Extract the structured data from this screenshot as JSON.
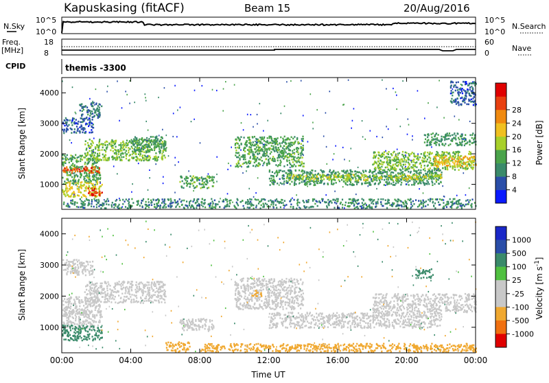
{
  "header": {
    "station": "Kapuskasing (fitACF)",
    "beam": "Beam 15",
    "date": "20/Aug/2016"
  },
  "top_panels": {
    "nsky_label": "N.Sky",
    "nsky_top_tick": "10^5",
    "nsky_bottom_tick": "10^0",
    "nsearch_label": "N.Search",
    "nsearch_top_tick": "10^5",
    "nsearch_bottom_tick": "10^0",
    "freq_label": "Freq.",
    "freq_unit": "[MHz]",
    "freq_top_tick": "18",
    "freq_bottom_tick": "8",
    "nave_label": "Nave",
    "nave_top_tick": "60",
    "nave_bottom_tick": "0",
    "cpid_label": "CPID",
    "cpid_text": "themis -3300"
  },
  "colors": {
    "power_scale": [
      "#0a1aff",
      "#2a4ea8",
      "#3a8a6a",
      "#4aa34a",
      "#a8d02a",
      "#f0c020",
      "#f08a10",
      "#e84010",
      "#e00000"
    ],
    "velocity_scale": [
      "#1a28c8",
      "#2a4ea8",
      "#3a8a6a",
      "#50c040",
      "#c8c8c8",
      "#c8c8c8",
      "#f0a830",
      "#f07010",
      "#e00000"
    ]
  },
  "chart_data": [
    {
      "type": "heatmap",
      "name": "Power",
      "ylabel": "Slant Range [km]",
      "yticks": [
        "1000",
        "2000",
        "3000",
        "4000"
      ],
      "ylim": [
        180,
        4500
      ],
      "xlim": [
        0,
        24
      ],
      "colorbar_label": "Power [dB]",
      "colorbar_ticks": [
        "4",
        "8",
        "12",
        "16",
        "20",
        "24",
        "28"
      ],
      "colorbar_range": [
        0,
        32
      ],
      "regions": [
        {
          "t0": 0.0,
          "t1": 2.2,
          "r0": 1000,
          "r1": 2000,
          "value": 12
        },
        {
          "t0": 0.0,
          "t1": 2.2,
          "r0": 1400,
          "r1": 1600,
          "value": 26
        },
        {
          "t0": 0.0,
          "t1": 2.3,
          "r0": 600,
          "r1": 1100,
          "value": 18
        },
        {
          "t0": 1.5,
          "t1": 2.3,
          "r0": 650,
          "r1": 900,
          "value": 28
        },
        {
          "t0": 0.0,
          "t1": 1.8,
          "r0": 2700,
          "r1": 3200,
          "value": 6
        },
        {
          "t0": 1.0,
          "t1": 2.3,
          "r0": 3200,
          "r1": 3700,
          "value": 8
        },
        {
          "t0": 1.3,
          "t1": 6.0,
          "r0": 1800,
          "r1": 2500,
          "value": 14
        },
        {
          "t0": 4.0,
          "t1": 6.0,
          "r0": 2100,
          "r1": 2600,
          "value": 10
        },
        {
          "t0": 6.8,
          "t1": 8.8,
          "r0": 900,
          "r1": 1300,
          "value": 12
        },
        {
          "t0": 0.0,
          "t1": 24.0,
          "r0": 180,
          "r1": 550,
          "value": 9
        },
        {
          "t0": 10.0,
          "t1": 14.0,
          "r0": 1600,
          "r1": 2600,
          "value": 12
        },
        {
          "t0": 12.0,
          "t1": 22.0,
          "r0": 1000,
          "r1": 1500,
          "value": 10
        },
        {
          "t0": 13.0,
          "t1": 22.0,
          "r0": 1150,
          "r1": 1350,
          "value": 16
        },
        {
          "t0": 18.0,
          "t1": 24.0,
          "r0": 1500,
          "r1": 2100,
          "value": 14
        },
        {
          "t0": 21.5,
          "t1": 24.0,
          "r0": 1600,
          "r1": 1950,
          "value": 20
        },
        {
          "t0": 21.0,
          "t1": 24.0,
          "r0": 2300,
          "r1": 2700,
          "value": 10
        },
        {
          "t0": 22.5,
          "t1": 24.0,
          "r0": 3600,
          "r1": 4400,
          "value": 6
        }
      ]
    },
    {
      "type": "heatmap",
      "name": "Velocity",
      "ylabel": "Slant Range [km]",
      "yticks": [
        "1000",
        "2000",
        "3000",
        "4000"
      ],
      "ylim": [
        180,
        4500
      ],
      "xlabel": "Time UT",
      "xticks": [
        "00:00",
        "04:00",
        "08:00",
        "12:00",
        "16:00",
        "20:00",
        "00:00"
      ],
      "xlim": [
        0,
        24
      ],
      "colorbar_label": "Velocity [m s^-1]",
      "colorbar_ticks": [
        "1000",
        "500",
        "100",
        "25",
        "-25",
        "-100",
        "-500",
        "-1000"
      ],
      "colorbar_range": [
        -1200,
        1200
      ],
      "regions": [
        {
          "t0": 0.0,
          "t1": 2.2,
          "r0": 1000,
          "r1": 2000,
          "value": 0
        },
        {
          "t0": 0.0,
          "t1": 2.3,
          "r0": 1350,
          "r1": 1550,
          "value": 0
        },
        {
          "t0": 0.0,
          "t1": 2.3,
          "r0": 600,
          "r1": 1100,
          "value": 150
        },
        {
          "t0": 0.0,
          "t1": 1.8,
          "r0": 2700,
          "r1": 3200,
          "value": 0
        },
        {
          "t0": 1.3,
          "t1": 6.0,
          "r0": 1800,
          "r1": 2500,
          "value": 0
        },
        {
          "t0": 6.8,
          "t1": 8.8,
          "r0": 900,
          "r1": 1300,
          "value": 0
        },
        {
          "t0": 6.0,
          "t1": 7.5,
          "r0": 180,
          "r1": 550,
          "value": -300
        },
        {
          "t0": 8.0,
          "t1": 24.0,
          "r0": 180,
          "r1": 500,
          "value": -150
        },
        {
          "t0": 10.0,
          "t1": 14.0,
          "r0": 1600,
          "r1": 2600,
          "value": 0
        },
        {
          "t0": 11.0,
          "t1": 11.6,
          "r0": 2000,
          "r1": 2200,
          "value": -300
        },
        {
          "t0": 12.0,
          "t1": 22.0,
          "r0": 1000,
          "r1": 1500,
          "value": 0
        },
        {
          "t0": 18.0,
          "t1": 24.0,
          "r0": 1500,
          "r1": 2100,
          "value": 0
        },
        {
          "t0": 20.5,
          "t1": 21.5,
          "r0": 2600,
          "r1": 2900,
          "value": 200
        }
      ]
    }
  ]
}
